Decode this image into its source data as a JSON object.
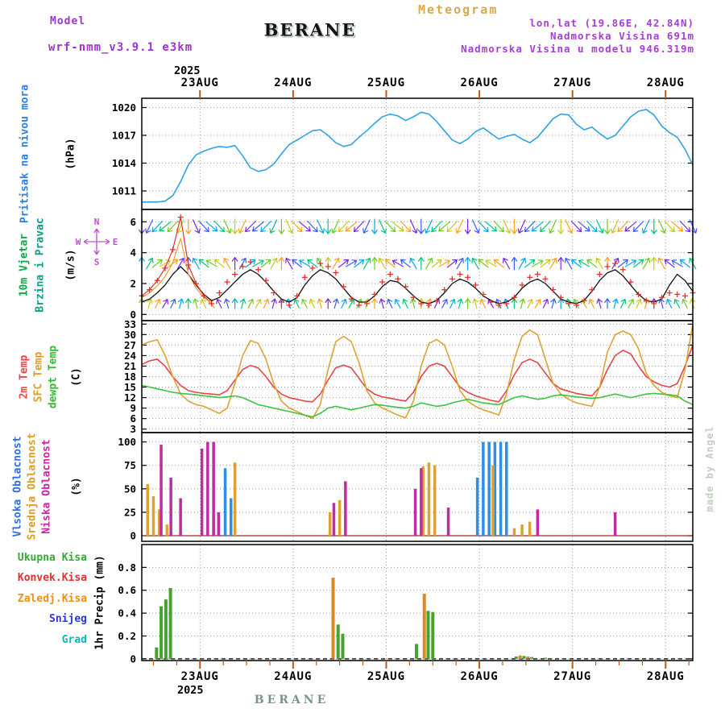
{
  "header": {
    "app_title": "Meteogram",
    "model_label": "Model",
    "model_name": "wrf-nmm_v3.9.1 e3km",
    "station": "BERANE",
    "lonlat": "lon,lat (19.86E, 42.84N)",
    "elevation": "Nadmorska Visina 691m",
    "model_elevation": "Nadmorska Visina u modelu 946.319m"
  },
  "axis": {
    "year": "2025"
  },
  "footer": {
    "station": "BERANE",
    "credit": "made by Angel"
  },
  "panels": {
    "pressure": {
      "label": "Pritisak na nivou mora",
      "unit": "(hPa)"
    },
    "wind": {
      "label1": "10m Vjetar",
      "label2": "Brzina i Pravac",
      "unit": "(m/s)",
      "compass": {
        "top": "N",
        "right": "E",
        "bottom": "S",
        "left": "W"
      }
    },
    "temp": {
      "labels": [
        "2m Temp",
        "SFC Temp",
        "dewpt Temp"
      ],
      "unit": "(C)"
    },
    "cloud": {
      "labels": [
        "Vlsoka Oblacnost",
        "Srednja Oblacnost",
        "Niska Oblacnost"
      ],
      "unit": "(%)"
    },
    "precip": {
      "labels": [
        "Ukupna Kisa",
        "Konvek.Kisa",
        "Zaledj.Kisa",
        "Snijeg",
        "Grad"
      ],
      "unit": "1hr Precip (mm)"
    }
  },
  "colors": {
    "accent_purple": "#9b35cf",
    "title_tan": "#d9a850",
    "tick_orange": "#c05a10",
    "grid_gray": "#999999",
    "cloud_zero_line": "#a82424"
  },
  "chart_data": {
    "type": "meteogram-multipanel",
    "time": {
      "step_hours": 2,
      "span_hours": 142,
      "day_tick_hours": [
        15,
        39,
        63,
        87,
        111,
        135
      ],
      "day_labels": [
        "23AUG",
        "24AUG",
        "25AUG",
        "26AUG",
        "27AUG",
        "28AUG"
      ],
      "year": "2025"
    },
    "pressure": {
      "type": "line",
      "name": "Pritisak na nivou mora (hPa)",
      "color": "#2fa3e8",
      "ylim": [
        1009,
        1021
      ],
      "yticks": [
        1011,
        1014,
        1017,
        1020
      ],
      "values": [
        1009.8,
        1009.8,
        1009.8,
        1009.9,
        1010.5,
        1012.0,
        1013.8,
        1014.9,
        1015.3,
        1015.6,
        1015.8,
        1015.7,
        1015.9,
        1014.8,
        1013.5,
        1013.1,
        1013.3,
        1013.9,
        1015.0,
        1016.0,
        1016.5,
        1017.0,
        1017.5,
        1017.6,
        1017.0,
        1016.2,
        1015.8,
        1016.0,
        1016.8,
        1017.5,
        1018.3,
        1019.0,
        1019.3,
        1019.1,
        1018.6,
        1019.0,
        1019.5,
        1019.3,
        1018.5,
        1017.5,
        1016.5,
        1016.1,
        1016.6,
        1017.4,
        1017.8,
        1017.2,
        1016.6,
        1016.9,
        1017.1,
        1016.6,
        1016.2,
        1016.8,
        1017.8,
        1018.8,
        1019.3,
        1019.2,
        1018.2,
        1017.6,
        1017.9,
        1017.2,
        1016.6,
        1017.0,
        1018.0,
        1019.0,
        1019.6,
        1019.8,
        1019.2,
        1018.0,
        1017.3,
        1016.8,
        1015.5,
        1013.8
      ]
    },
    "wind": {
      "type": "line+barbs",
      "name": "10m Vjetar Brzina i Pravac (m/s)",
      "ylim": [
        -0.4,
        6.8
      ],
      "yticks": [
        0,
        2,
        4,
        6
      ],
      "plus_color": "#e83030",
      "line_color": "#111111",
      "palette": [
        "#7a2be2",
        "#3a5bff",
        "#00a8e8",
        "#00c878",
        "#6ecb22",
        "#c8c81e",
        "#ffa21e"
      ],
      "plus_values": [
        1.2,
        1.6,
        2.2,
        3.0,
        4.2,
        6.3,
        3.2,
        2.0,
        1.2,
        0.7,
        1.4,
        2.1,
        2.6,
        3.1,
        3.4,
        2.9,
        2.2,
        1.4,
        0.8,
        0.6,
        1.2,
        2.4,
        3.0,
        3.3,
        3.1,
        2.7,
        1.8,
        1.0,
        0.6,
        0.7,
        1.3,
        2.1,
        2.6,
        2.3,
        1.8,
        1.1,
        0.7,
        0.6,
        0.9,
        1.6,
        2.3,
        2.6,
        2.4,
        1.9,
        1.3,
        0.8,
        0.6,
        0.7,
        1.1,
        1.9,
        2.4,
        2.6,
        2.3,
        1.6,
        1.1,
        0.7,
        0.6,
        0.9,
        1.6,
        2.6,
        3.1,
        3.3,
        2.9,
        2.1,
        1.3,
        0.9,
        0.7,
        1.1,
        1.4,
        1.3,
        1.2,
        1.4
      ],
      "line_values": [
        0.8,
        1.0,
        1.4,
        1.9,
        2.6,
        3.1,
        2.6,
        1.9,
        1.3,
        0.9,
        1.1,
        1.6,
        2.1,
        2.6,
        2.9,
        2.6,
        2.1,
        1.5,
        1.0,
        0.8,
        1.1,
        1.9,
        2.5,
        2.9,
        2.7,
        2.3,
        1.7,
        1.1,
        0.8,
        0.8,
        1.2,
        1.8,
        2.2,
        2.1,
        1.7,
        1.2,
        0.8,
        0.7,
        0.9,
        1.4,
        2.0,
        2.3,
        2.1,
        1.7,
        1.2,
        0.9,
        0.7,
        0.8,
        1.1,
        1.7,
        2.1,
        2.3,
        2.0,
        1.5,
        1.0,
        0.8,
        0.7,
        0.9,
        1.5,
        2.2,
        2.7,
        2.9,
        2.5,
        1.9,
        1.3,
        0.9,
        0.8,
        1.0,
        1.9,
        2.6,
        2.2,
        1.5
      ],
      "barb_rows": [
        {
          "level": 5.7,
          "len": 18,
          "repeat": 6,
          "cycle": [
            180,
            205,
            224,
            230,
            224,
            205,
            180,
            155,
            137,
            130,
            137,
            155
          ]
        },
        {
          "level": 3.3,
          "len": 15,
          "repeat": 6,
          "cycle": [
            0,
            30,
            52,
            60,
            52,
            30,
            0,
            330,
            308,
            300,
            308,
            330
          ]
        },
        {
          "level": 0.7,
          "len": 12,
          "repeat": 6,
          "cycle": [
            0,
            15,
            26,
            30,
            26,
            15,
            0,
            345,
            334,
            330,
            334,
            345
          ]
        }
      ]
    },
    "temperature": {
      "type": "line",
      "name": "2m / SFC / dewpoint temperature (C)",
      "ylim": [
        2,
        34
      ],
      "yticks": [
        3,
        6,
        9,
        12,
        15,
        18,
        21,
        24,
        27,
        30,
        33
      ],
      "series": [
        {
          "name": "2m Temp",
          "color": "#e84545",
          "values": [
            21.5,
            22.5,
            23.0,
            21.0,
            18.0,
            15.5,
            14.0,
            13.5,
            13.2,
            13.0,
            12.8,
            14.0,
            17.0,
            20.0,
            21.2,
            20.5,
            18.0,
            15.0,
            13.0,
            12.0,
            11.5,
            11.0,
            10.8,
            13.0,
            17.0,
            20.5,
            21.3,
            20.5,
            17.5,
            14.5,
            13.0,
            12.2,
            11.8,
            11.4,
            11.0,
            13.5,
            18.0,
            21.0,
            21.8,
            21.0,
            18.0,
            15.0,
            13.5,
            12.5,
            11.8,
            11.2,
            10.8,
            14.0,
            18.5,
            22.0,
            23.0,
            22.0,
            19.0,
            16.0,
            14.5,
            13.8,
            13.2,
            12.8,
            12.5,
            15.0,
            20.0,
            24.0,
            25.5,
            24.5,
            21.0,
            18.0,
            16.5,
            15.5,
            15.0,
            16.0,
            21.0,
            27.0
          ]
        },
        {
          "name": "SFC Temp",
          "color": "#dfa232",
          "values": [
            27.0,
            28.0,
            28.5,
            24.0,
            18.0,
            13.0,
            11.0,
            10.0,
            9.5,
            8.5,
            7.5,
            9.0,
            16.0,
            24.0,
            28.3,
            27.5,
            23.0,
            16.0,
            11.0,
            9.0,
            8.0,
            7.0,
            6.0,
            10.0,
            20.0,
            28.0,
            29.5,
            28.0,
            22.0,
            14.0,
            10.5,
            9.0,
            8.0,
            7.0,
            6.2,
            11.0,
            21.0,
            27.5,
            28.6,
            27.0,
            21.0,
            14.0,
            11.0,
            9.5,
            8.5,
            7.8,
            7.0,
            13.0,
            23.0,
            29.5,
            31.3,
            30.0,
            23.0,
            16.0,
            13.0,
            11.5,
            10.5,
            10.0,
            9.5,
            15.0,
            25.0,
            30.0,
            31.0,
            30.0,
            26.0,
            19.0,
            15.5,
            13.5,
            12.5,
            12.0,
            20.0,
            33.0
          ]
        },
        {
          "name": "dewpt Temp",
          "color": "#3cc43c",
          "values": [
            15.5,
            15.0,
            14.5,
            14.0,
            13.5,
            13.2,
            13.0,
            12.8,
            12.5,
            12.3,
            12.0,
            12.2,
            12.5,
            12.0,
            11.0,
            10.0,
            9.5,
            9.0,
            8.5,
            8.0,
            7.5,
            7.0,
            6.5,
            7.5,
            9.0,
            9.5,
            9.0,
            8.5,
            9.0,
            9.5,
            10.0,
            9.8,
            9.5,
            9.2,
            9.0,
            9.5,
            10.5,
            10.0,
            9.5,
            9.8,
            10.5,
            11.0,
            11.5,
            11.0,
            10.5,
            10.2,
            10.0,
            11.0,
            12.0,
            12.5,
            12.0,
            11.5,
            11.8,
            12.5,
            12.8,
            12.5,
            12.2,
            12.0,
            11.8,
            12.0,
            12.5,
            13.0,
            12.5,
            12.0,
            12.5,
            13.0,
            13.2,
            13.0,
            12.8,
            12.5,
            11.0,
            10.0
          ]
        }
      ]
    },
    "cloud": {
      "type": "bar",
      "name": "Oblacnost (%)",
      "ylim": [
        -6,
        110
      ],
      "yticks": [
        0,
        25,
        50,
        75,
        100
      ],
      "series": [
        {
          "name": "Vlsoka Oblacnost",
          "color": "#2d8fe8",
          "points": [
            [
              21.5,
              72
            ],
            [
              23,
              40
            ],
            [
              86.5,
              62
            ],
            [
              88,
              100
            ],
            [
              89.5,
              100
            ],
            [
              91,
              100
            ],
            [
              92.5,
              100
            ],
            [
              94,
              100
            ]
          ]
        },
        {
          "name": "Srednja Oblacnost",
          "color": "#dfa232",
          "points": [
            [
              1.5,
              55
            ],
            [
              3,
              42
            ],
            [
              4.5,
              28
            ],
            [
              6.5,
              12
            ],
            [
              24,
              78
            ],
            [
              48.5,
              25
            ],
            [
              51,
              38
            ],
            [
              72.5,
              74
            ],
            [
              74,
              78
            ],
            [
              75.5,
              75
            ],
            [
              90.5,
              75
            ],
            [
              96,
              8
            ],
            [
              98,
              12
            ],
            [
              100,
              15
            ]
          ]
        },
        {
          "name": "Niska Oblacnost",
          "color": "#c22ba0",
          "points": [
            [
              5,
              97
            ],
            [
              7.5,
              62
            ],
            [
              10,
              40
            ],
            [
              15.5,
              93
            ],
            [
              17,
              100
            ],
            [
              18.5,
              100
            ],
            [
              19.8,
              25
            ],
            [
              49.5,
              35
            ],
            [
              52.5,
              58
            ],
            [
              70.5,
              50
            ],
            [
              72,
              72
            ],
            [
              79,
              30
            ],
            [
              102,
              28
            ],
            [
              122,
              25
            ]
          ]
        }
      ]
    },
    "precip": {
      "type": "bar",
      "name": "1hr Precip (mm)",
      "ylim": [
        -0.015,
        1.0
      ],
      "yticks": [
        0,
        0.2,
        0.4,
        0.6,
        0.8
      ],
      "series": [
        {
          "name": "Zaledj.Kisa",
          "color": "#d98a20",
          "points": [
            [
              49.3,
              0.71
            ],
            [
              72.8,
              0.57
            ],
            [
              97.5,
              0.03
            ],
            [
              99.5,
              0.02
            ]
          ]
        },
        {
          "name": "Ukupna Kisa",
          "color": "#46a32e",
          "points": [
            [
              3.8,
              0.1
            ],
            [
              5.0,
              0.46
            ],
            [
              6.2,
              0.52
            ],
            [
              7.4,
              0.62
            ],
            [
              50.6,
              0.3
            ],
            [
              51.8,
              0.22
            ],
            [
              70.8,
              0.13
            ],
            [
              73.8,
              0.42
            ],
            [
              75.0,
              0.41
            ],
            [
              96.5,
              0.02
            ],
            [
              98.5,
              0.025
            ],
            [
              100.5,
              0.015
            ],
            [
              104,
              0.01
            ]
          ]
        }
      ]
    }
  }
}
